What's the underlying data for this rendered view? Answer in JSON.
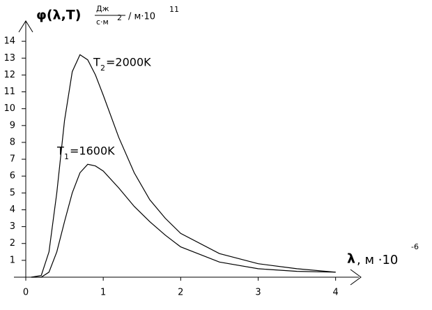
{
  "chart_data": {
    "type": "line",
    "y_label": {
      "main": "φ(λ,T)",
      "num": "Дж",
      "den": "с·м",
      "den_sup": "2",
      "unit": "/ м·10",
      "unit_sup": "11"
    },
    "x_label": {
      "main": "λ",
      "unit": ", м ·10",
      "unit_sup": "-6"
    },
    "xlim": [
      0,
      4.3
    ],
    "ylim": [
      0,
      15
    ],
    "xticks": [
      0,
      1,
      2,
      3,
      4
    ],
    "yticks": [
      1,
      2,
      3,
      4,
      5,
      6,
      7,
      8,
      9,
      10,
      11,
      12,
      13,
      14
    ],
    "color": "#000000",
    "series": [
      {
        "label": {
          "base": "T",
          "sub": "2",
          "rest": "=2000K"
        },
        "x": [
          0.07,
          0.2,
          0.3,
          0.4,
          0.5,
          0.6,
          0.7,
          0.8,
          0.9,
          1.0,
          1.2,
          1.4,
          1.6,
          1.8,
          2.0,
          2.5,
          3.0,
          3.5,
          4.0
        ],
        "values": [
          0,
          0.1,
          1.5,
          5,
          9.3,
          12.2,
          13.2,
          12.9,
          12.0,
          10.8,
          8.3,
          6.2,
          4.6,
          3.5,
          2.6,
          1.4,
          0.8,
          0.5,
          0.3
        ]
      },
      {
        "label": {
          "base": "T",
          "sub": "1",
          "rest": "=1600K"
        },
        "x": [
          0.07,
          0.2,
          0.3,
          0.4,
          0.5,
          0.6,
          0.7,
          0.8,
          0.9,
          1.0,
          1.2,
          1.4,
          1.6,
          1.8,
          2.0,
          2.5,
          3.0,
          3.5,
          4.0
        ],
        "values": [
          0,
          0,
          0.3,
          1.5,
          3.3,
          5.0,
          6.2,
          6.7,
          6.6,
          6.3,
          5.3,
          4.2,
          3.3,
          2.5,
          1.8,
          0.9,
          0.5,
          0.35,
          0.3
        ]
      }
    ]
  }
}
